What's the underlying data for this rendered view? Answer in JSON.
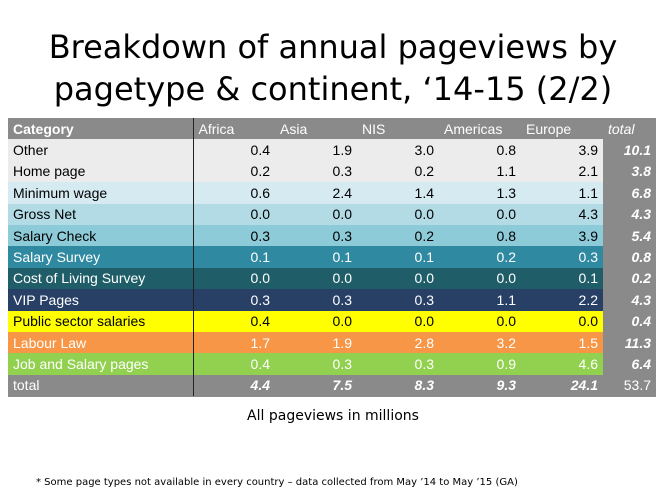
{
  "title": "Breakdown of annual pageviews by pagetype & continent, ‘14-15 (2/2)",
  "unit_note": "All pageviews in millions",
  "footnote": "* Some page types not available in every country – data collected from May ’14 to May ’15 (GA)",
  "colors": {
    "header": "#8a8a8a",
    "total": "#8a8a8a",
    "rows": [
      "#ececec",
      "#ececec",
      "#d6eaf2",
      "#b2dbe6",
      "#8ecbd9",
      "#2f8aa1",
      "#1f5e68",
      "#283f66",
      "#ffff00",
      "#f79646",
      "#92d050"
    ]
  },
  "chart_data": {
    "type": "table",
    "columns": [
      "Category",
      "Africa",
      "Asia",
      "NIS",
      "Americas",
      "Europe",
      "total"
    ],
    "rows": [
      {
        "category": "Other",
        "values": [
          "0.4",
          "1.9",
          "3.0",
          "0.8",
          "3.9"
        ],
        "total": "10.1",
        "text_color": "#000000"
      },
      {
        "category": "Home page",
        "values": [
          "0.2",
          "0.3",
          "0.2",
          "1.1",
          "2.1"
        ],
        "total": "3.8",
        "text_color": "#000000"
      },
      {
        "category": "Minimum wage",
        "values": [
          "0.6",
          "2.4",
          "1.4",
          "1.3",
          "1.1"
        ],
        "total": "6.8",
        "text_color": "#000000"
      },
      {
        "category": "Gross Net",
        "values": [
          "0.0",
          "0.0",
          "0.0",
          "0.0",
          "4.3"
        ],
        "total": "4.3",
        "text_color": "#000000"
      },
      {
        "category": "Salary Check",
        "values": [
          "0.3",
          "0.3",
          "0.2",
          "0.8",
          "3.9"
        ],
        "total": "5.4",
        "text_color": "#000000"
      },
      {
        "category": "Salary Survey",
        "values": [
          "0.1",
          "0.1",
          "0.1",
          "0.2",
          "0.3"
        ],
        "total": "0.8",
        "text_color": "#ffffff"
      },
      {
        "category": "Cost of Living Survey",
        "values": [
          "0.0",
          "0.0",
          "0.0",
          "0.0",
          "0.1"
        ],
        "total": "0.2",
        "text_color": "#ffffff"
      },
      {
        "category": "VIP Pages",
        "values": [
          "0.3",
          "0.3",
          "0.3",
          "1.1",
          "2.2"
        ],
        "total": "4.3",
        "text_color": "#ffffff"
      },
      {
        "category": "Public sector salaries",
        "values": [
          "0.4",
          "0.0",
          "0.0",
          "0.0",
          "0.0"
        ],
        "total": "0.4",
        "text_color": "#000000"
      },
      {
        "category": "Labour Law",
        "values": [
          "1.7",
          "1.9",
          "2.8",
          "3.2",
          "1.5"
        ],
        "total": "11.3",
        "text_color": "#ffffff"
      },
      {
        "category": "Job and Salary pages",
        "values": [
          "0.4",
          "0.3",
          "0.3",
          "0.9",
          "4.6"
        ],
        "total": "6.4",
        "text_color": "#ffffff"
      }
    ],
    "total_row": {
      "category": "total",
      "values": [
        "4.4",
        "7.5",
        "8.3",
        "9.3",
        "24.1"
      ],
      "total": "53.7"
    }
  }
}
